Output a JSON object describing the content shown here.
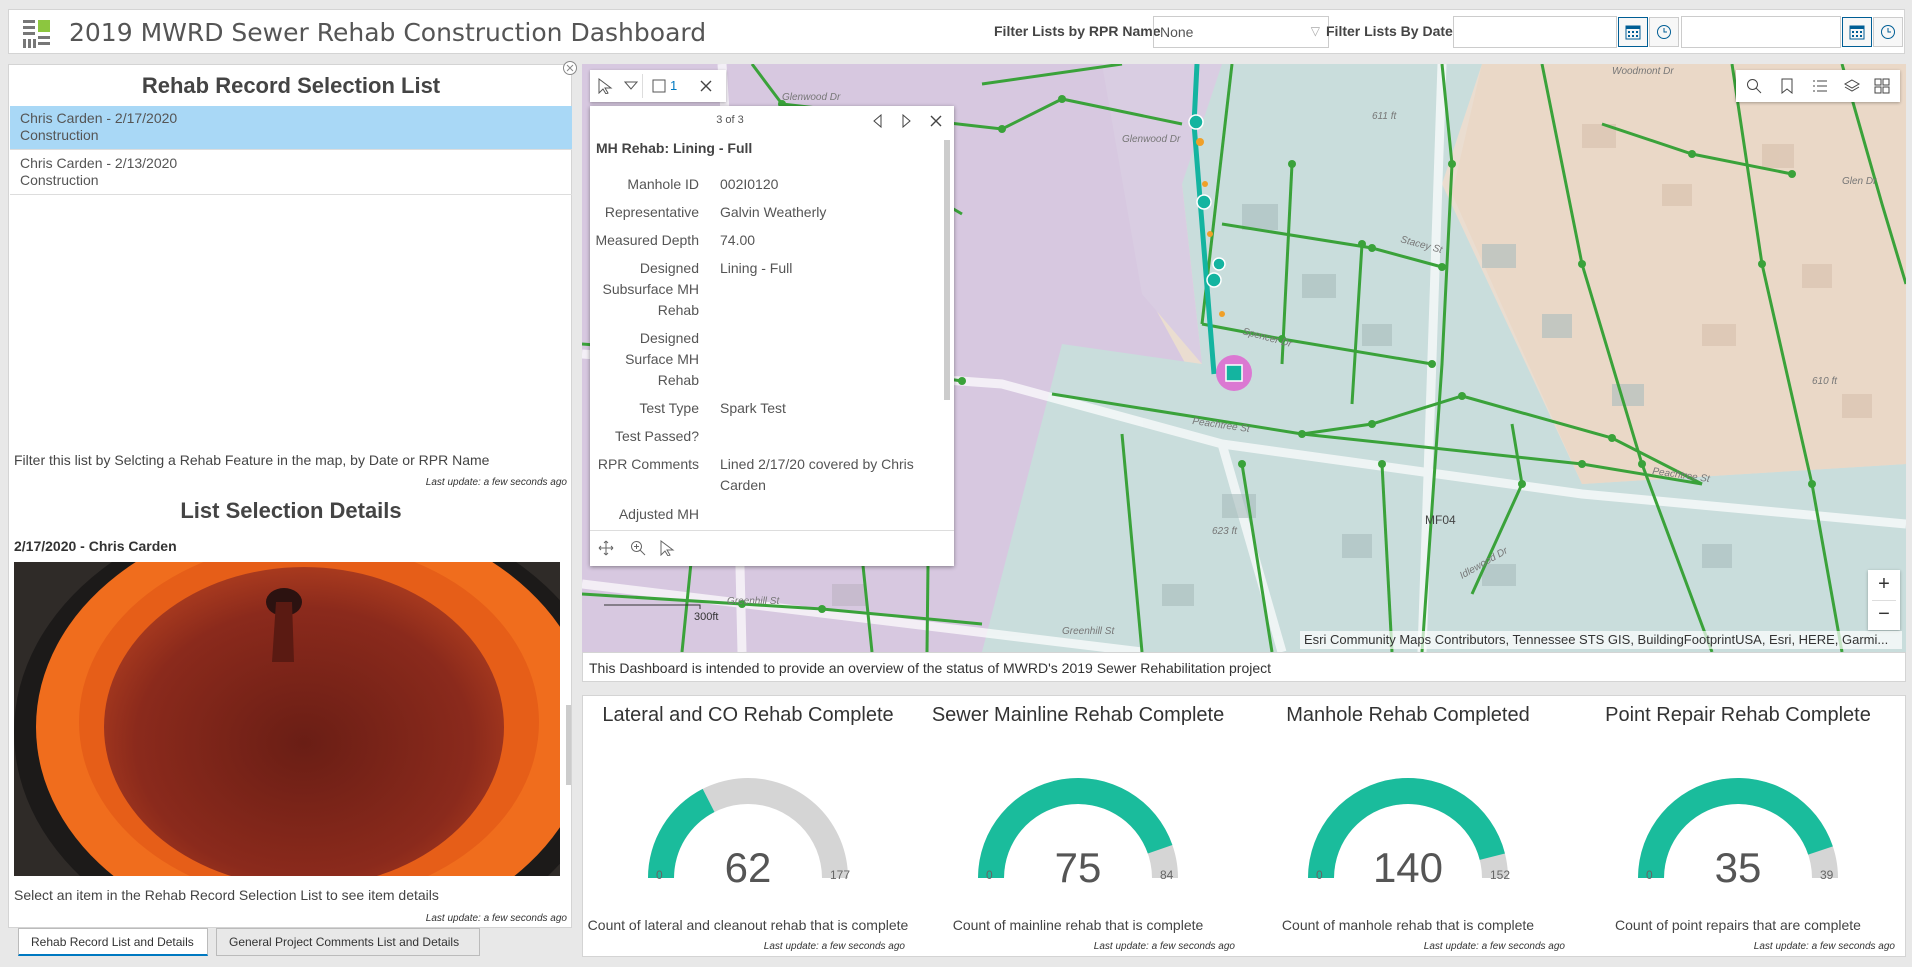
{
  "header": {
    "title": "2019 MWRD Sewer Rehab Construction Dashboard",
    "filter_rpr_label": "Filter Lists by RPR Name",
    "filter_rpr_value": "None",
    "filter_date_label": "Filter Lists By Date:"
  },
  "left": {
    "list_title": "Rehab Record Selection List",
    "items": [
      {
        "line1": "Chris Carden - 2/17/2020",
        "line2": "Construction"
      },
      {
        "line1": "Chris Carden - 2/13/2020",
        "line2": "Construction"
      }
    ],
    "filter_note": "Filter this list by Selcting a Rehab Feature in the map, by Date or RPR Name",
    "last_update": "Last update: a few seconds ago",
    "details_title": "List Selection Details",
    "details_heading": "2/17/2020 - Chris Carden",
    "details_note": "Select an item in the Rehab Record Selection List to see item details",
    "details_last_update": "Last update: a few seconds ago"
  },
  "tabs": [
    "Rehab Record List and Details",
    "General Project Comments List and Details"
  ],
  "map": {
    "popup_counter_tab": "1",
    "popup_paging": "3 of 3",
    "popup_title": "MH Rehab: Lining - Full",
    "fields": [
      {
        "k": "Manhole ID",
        "v": "002I0120"
      },
      {
        "k": "Representative",
        "v": "Galvin Weatherly"
      },
      {
        "k": "Measured Depth",
        "v": "74.00"
      },
      {
        "k": "Designed Subsurface MH Rehab",
        "v": "Lining - Full"
      },
      {
        "k": "Designed Surface MH Rehab",
        "v": ""
      },
      {
        "k": "Test Type",
        "v": "Spark Test"
      },
      {
        "k": "Test Passed?",
        "v": ""
      },
      {
        "k": "RPR Comments",
        "v": "Lined 2/17/20 covered by Chris Carden"
      },
      {
        "k": "Adjusted MH",
        "v": ""
      }
    ],
    "scale_label": "300ft",
    "attribution": "Esri Community Maps Contributors, Tennessee STS GIS, BuildingFootprintUSA, Esri, HERE, Garmi...",
    "labels": {
      "streets": [
        "Glenwood Dr",
        "Glenwood Dr",
        "Spencer Dr",
        "Peachtree St",
        "Peachtree St",
        "Greenhill St",
        "Greenhill St",
        "Stacey St",
        "Idlewood Dr",
        "Woodmont Dr",
        "Glen Dr"
      ],
      "elev1": "611 ft",
      "elev2": "610 ft",
      "elev3": "623 ft",
      "area": "MF04"
    }
  },
  "description": "This Dashboard is intended to provide an overview of the status of MWRD's 2019 Sewer Rehabilitation project",
  "gauges": [
    {
      "title": "Lateral and CO Rehab Complete",
      "value": "62",
      "min": "0",
      "max": "177",
      "desc": "Count of lateral and cleanout rehab that is complete",
      "updated": "Last update: a few seconds ago"
    },
    {
      "title": "Sewer Mainline Rehab Complete",
      "value": "75",
      "min": "0",
      "max": "84",
      "desc": "Count of mainline rehab that is complete",
      "updated": "Last update: a few seconds ago"
    },
    {
      "title": "Manhole Rehab Completed",
      "value": "140",
      "min": "0",
      "max": "152",
      "desc": "Count of manhole rehab that is complete",
      "updated": "Last update: a few seconds ago"
    },
    {
      "title": "Point Repair Rehab Complete",
      "value": "35",
      "min": "0",
      "max": "39",
      "desc": "Count of point repairs that are complete",
      "updated": "Last update: a few seconds ago"
    }
  ],
  "colors": {
    "gauge_fill": "#1abc9c",
    "gauge_track": "#d5d5d5",
    "selected_row": "#a9d8f6",
    "pipe": "#3aa23a"
  }
}
